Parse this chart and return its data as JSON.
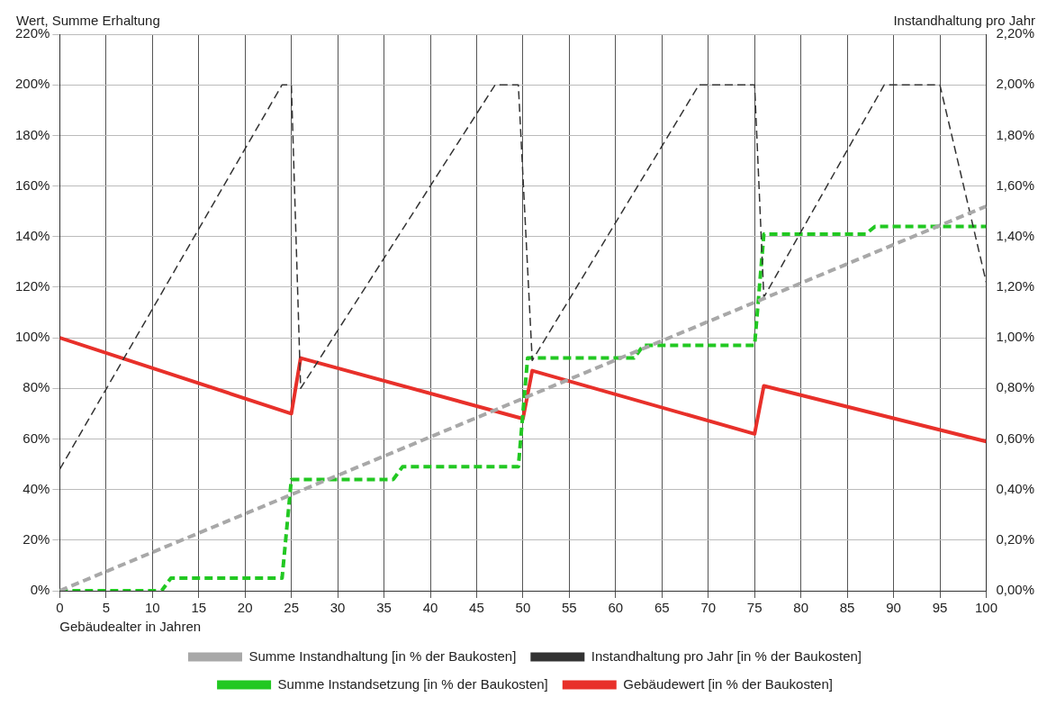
{
  "chart_data": {
    "type": "line",
    "xlabel": "Gebäudealter in Jahren",
    "ylabel": "Wert, Summe Erhaltung",
    "y2label": "Instandhaltung pro Jahr",
    "xlim": [
      0,
      100
    ],
    "xticks": [
      0,
      5,
      10,
      15,
      20,
      25,
      30,
      35,
      40,
      45,
      50,
      55,
      60,
      65,
      70,
      75,
      80,
      85,
      90,
      95,
      100
    ],
    "ylim": [
      0,
      220
    ],
    "yticks": [
      {
        "value": 0,
        "label": "0%"
      },
      {
        "value": 20,
        "label": "20%"
      },
      {
        "value": 40,
        "label": "40%"
      },
      {
        "value": 60,
        "label": "60%"
      },
      {
        "value": 80,
        "label": "80%"
      },
      {
        "value": 100,
        "label": "100%"
      },
      {
        "value": 120,
        "label": "120%"
      },
      {
        "value": 140,
        "label": "140%"
      },
      {
        "value": 160,
        "label": "160%"
      },
      {
        "value": 180,
        "label": "180%"
      },
      {
        "value": 200,
        "label": "200%"
      },
      {
        "value": 220,
        "label": "220%"
      }
    ],
    "y2lim": [
      0,
      2.2
    ],
    "y2ticks": [
      {
        "value": 0,
        "label": "0,00%"
      },
      {
        "value": 0.2,
        "label": "0,20%"
      },
      {
        "value": 0.4,
        "label": "0,40%"
      },
      {
        "value": 0.6,
        "label": "0,60%"
      },
      {
        "value": 0.8,
        "label": "0,80%"
      },
      {
        "value": 1,
        "label": "1,00%"
      },
      {
        "value": 1.2,
        "label": "1,20%"
      },
      {
        "value": 1.4,
        "label": "1,40%"
      },
      {
        "value": 1.6,
        "label": "1,60%"
      },
      {
        "value": 1.8,
        "label": "1,80%"
      },
      {
        "value": 2,
        "label": "2,00%"
      },
      {
        "value": 2.2,
        "label": "2,20%"
      }
    ],
    "grid": true,
    "legend": "bottom",
    "marker": "none",
    "series": [
      {
        "name": "Summe Instandhaltung [in % der Baukosten]",
        "color": "#a8a8a8",
        "line_style": "dashed",
        "x": [
          0,
          100
        ],
        "values": [
          0,
          152
        ]
      },
      {
        "name": "Instandhaltung pro Jahr [in % der Baukosten]",
        "color": "#333333",
        "line_style": "dashed",
        "axis": "y2",
        "x": [
          0,
          24,
          25,
          26,
          47,
          49.5,
          51,
          69,
          75,
          76,
          89,
          95,
          100
        ],
        "values": [
          0.48,
          2,
          2,
          0.8,
          2,
          2,
          0.91,
          2,
          2,
          1.16,
          2,
          2,
          1.22
        ]
      },
      {
        "name": "Summe Instandsetzung [in % der Baukosten]",
        "color": "#22c822",
        "line_style": "dashed",
        "x": [
          0,
          11,
          12,
          24,
          25,
          36,
          37,
          49.5,
          50.5,
          62,
          63,
          75,
          76,
          87,
          88,
          100
        ],
        "values": [
          0,
          0,
          5,
          5,
          44,
          44,
          49,
          49,
          92,
          92,
          97,
          97,
          141,
          141,
          144,
          144
        ]
      },
      {
        "name": "Gebäudewert [in % der Baukosten]",
        "color": "#e8302a",
        "line_style": "solid",
        "x": [
          0,
          25,
          26,
          50,
          51,
          75,
          76,
          100
        ],
        "values": [
          100,
          70,
          92,
          68,
          87,
          62,
          81,
          59
        ]
      }
    ]
  }
}
